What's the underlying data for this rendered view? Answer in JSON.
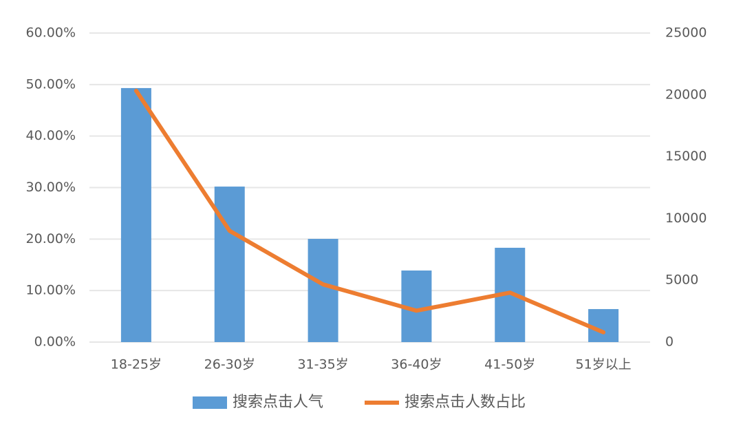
{
  "chart_data": {
    "type": "bar-line",
    "categories": [
      "18-25岁",
      "26-30岁",
      "31-35岁",
      "36-40岁",
      "41-50岁",
      "51岁以上"
    ],
    "series": [
      {
        "name": "搜索点击人气",
        "type": "bar",
        "axis": "y2",
        "color": "#5b9bd5",
        "values": [
          20550,
          12580,
          8350,
          5790,
          7630,
          2670
        ]
      },
      {
        "name": "搜索点击人数占比",
        "type": "line",
        "axis": "y",
        "color": "#ed7d31",
        "values": [
          48.8,
          21.6,
          11.2,
          6.1,
          9.6,
          1.9
        ]
      }
    ],
    "ylim": [
      0,
      60
    ],
    "yticks": [
      {
        "value": 0,
        "label": "0.00%"
      },
      {
        "value": 10,
        "label": "10.00%"
      },
      {
        "value": 20,
        "label": "20.00%"
      },
      {
        "value": 30,
        "label": "30.00%"
      },
      {
        "value": 40,
        "label": "40.00%"
      },
      {
        "value": 50,
        "label": "50.00%"
      },
      {
        "value": 60,
        "label": "60.00%"
      }
    ],
    "y2lim": [
      0,
      25000
    ],
    "y2ticks": [
      0,
      5000,
      10000,
      15000,
      20000,
      25000
    ],
    "grid": true,
    "legend": "bottom"
  }
}
